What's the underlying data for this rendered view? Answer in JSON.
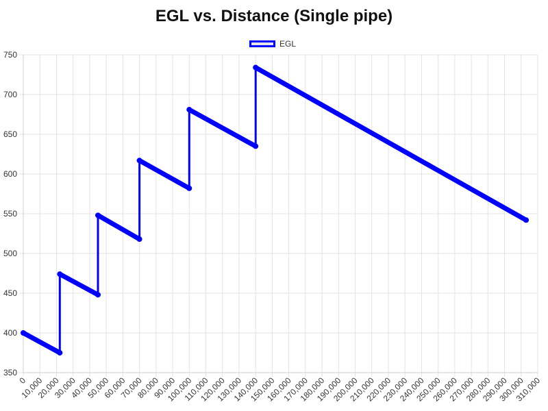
{
  "chart_data": {
    "type": "line",
    "title": "EGL vs. Distance (Single pipe)",
    "xlabel": "",
    "ylabel": "",
    "xlim": [
      0,
      310000
    ],
    "ylim": [
      350,
      750
    ],
    "x_ticks": [
      0,
      10000,
      20000,
      30000,
      40000,
      50000,
      60000,
      70000,
      80000,
      90000,
      100000,
      110000,
      120000,
      130000,
      140000,
      150000,
      160000,
      170000,
      180000,
      190000,
      200000,
      210000,
      220000,
      230000,
      240000,
      250000,
      260000,
      270000,
      280000,
      290000,
      300000,
      310000
    ],
    "y_ticks": [
      350,
      400,
      450,
      500,
      550,
      600,
      650,
      700,
      750
    ],
    "grid": true,
    "legend_position": "top-center",
    "series": [
      {
        "name": "EGL",
        "color": "#0000ff",
        "points": [
          {
            "x": 0,
            "y": 400
          },
          {
            "x": 22000,
            "y": 375
          },
          {
            "x": 22000,
            "y": 474
          },
          {
            "x": 45000,
            "y": 448
          },
          {
            "x": 45000,
            "y": 548
          },
          {
            "x": 70000,
            "y": 518
          },
          {
            "x": 70000,
            "y": 617
          },
          {
            "x": 100000,
            "y": 582
          },
          {
            "x": 100000,
            "y": 681
          },
          {
            "x": 140000,
            "y": 635
          },
          {
            "x": 140000,
            "y": 734
          },
          {
            "x": 303000,
            "y": 542
          }
        ]
      }
    ]
  }
}
